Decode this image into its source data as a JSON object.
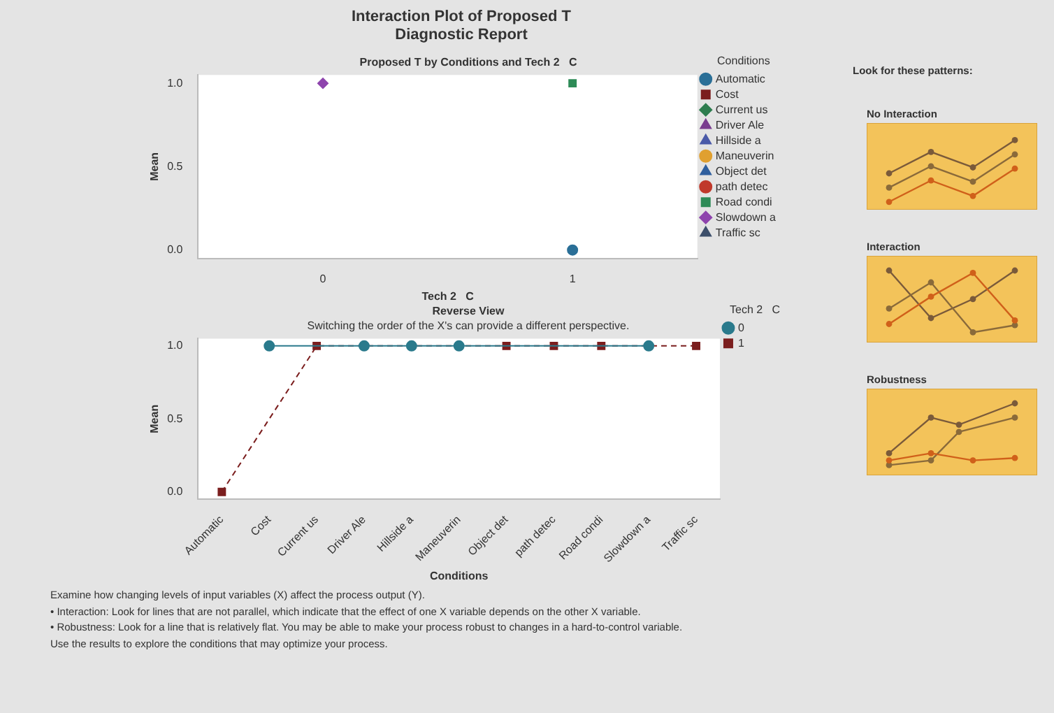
{
  "chart_data": [
    {
      "type": "other",
      "title": "Interaction Plot of Proposed T",
      "subtitle": "Diagnostic Report"
    },
    {
      "type": "line",
      "title": "Proposed T by Conditions and Tech 2   C",
      "xlabel": "Tech 2   C",
      "ylabel": "Mean",
      "categories": [
        "0",
        "1"
      ],
      "ylim": [
        -0.05,
        1.05
      ],
      "yticks": [
        {
          "value": 0,
          "label": "0.0"
        },
        {
          "value": 0.5,
          "label": "0.5"
        },
        {
          "value": 1,
          "label": "1.0"
        }
      ],
      "legend": "right",
      "legend_title": "Conditions",
      "series": [
        {
          "name": "Automatic",
          "color": "#2a6f97",
          "marker": "circle",
          "line_style": "solid",
          "values": [
            null,
            0
          ]
        },
        {
          "name": "Cost",
          "color": "#7b1e1e",
          "marker": "square",
          "line_style": "dashed",
          "values": [
            null,
            null
          ]
        },
        {
          "name": "Current us",
          "color": "#2e7d4f",
          "marker": "diamond",
          "line_style": "solid",
          "values": [
            null,
            null
          ]
        },
        {
          "name": "Driver Ale",
          "color": "#7a3d8f",
          "marker": "triangle",
          "line_style": "dashed",
          "values": [
            null,
            null
          ]
        },
        {
          "name": "Hillside a",
          "color": "#4a5aa8",
          "marker": "triangle",
          "line_style": "solid",
          "values": [
            null,
            null
          ]
        },
        {
          "name": "Maneuverin",
          "color": "#e0a030",
          "marker": "circle",
          "line_style": "solid",
          "values": [
            null,
            null
          ]
        },
        {
          "name": "Object det",
          "color": "#2f5f9e",
          "marker": "triangle",
          "line_style": "dashed",
          "values": [
            null,
            null
          ]
        },
        {
          "name": "path detec",
          "color": "#c0392b",
          "marker": "circle",
          "line_style": "dashed",
          "values": [
            null,
            null
          ]
        },
        {
          "name": "Road condi",
          "color": "#2e8b57",
          "marker": "square",
          "line_style": "solid",
          "values": [
            null,
            1
          ]
        },
        {
          "name": "Slowdown a",
          "color": "#8e44ad",
          "marker": "diamond",
          "line_style": "dashed",
          "values": [
            1,
            null
          ]
        },
        {
          "name": "Traffic sc",
          "color": "#3d4f6b",
          "marker": "triangle",
          "line_style": "solid",
          "values": [
            null,
            null
          ]
        }
      ]
    },
    {
      "type": "line",
      "title": "Reverse View",
      "subtitle": "Switching the order of the X's can provide a different perspective.",
      "xlabel": "Conditions",
      "ylabel": "Mean",
      "categories": [
        "Automatic",
        "Cost",
        "Current us",
        "Driver Ale",
        "Hillside a",
        "Maneuverin",
        "Object det",
        "path detec",
        "Road condi",
        "Slowdown a",
        "Traffic sc"
      ],
      "ylim": [
        -0.05,
        1.05
      ],
      "yticks": [
        {
          "value": 0,
          "label": "0.0"
        },
        {
          "value": 0.5,
          "label": "0.5"
        },
        {
          "value": 1,
          "label": "1.0"
        }
      ],
      "legend": "right",
      "legend_title": "Tech 2   C",
      "series": [
        {
          "name": "0",
          "color": "#2a7a8c",
          "marker": "circle",
          "line_style": "solid",
          "values": [
            null,
            1,
            null,
            1,
            1,
            1,
            null,
            null,
            null,
            1,
            null
          ]
        },
        {
          "name": "1",
          "color": "#7b1e1e",
          "marker": "square",
          "line_style": "dashed",
          "values": [
            0,
            null,
            1,
            null,
            null,
            null,
            1,
            1,
            1,
            null,
            1
          ]
        }
      ],
      "annotations": [
        "Examine how changing levels of input variables (X) affect the process output (Y).",
        "• Interaction: Look for lines that are not parallel, which indicate that the effect of one X variable depends on the other X variable.",
        "• Robustness: Look for a line that is relatively flat. You may be able to make your process robust to changes in a hard-to-control variable.",
        "Use the results to explore the conditions that may optimize your process."
      ]
    },
    {
      "type": "other",
      "title": "Look for these patterns:",
      "annotations": [
        "No Interaction",
        "Interaction",
        "Robustness"
      ]
    }
  ]
}
